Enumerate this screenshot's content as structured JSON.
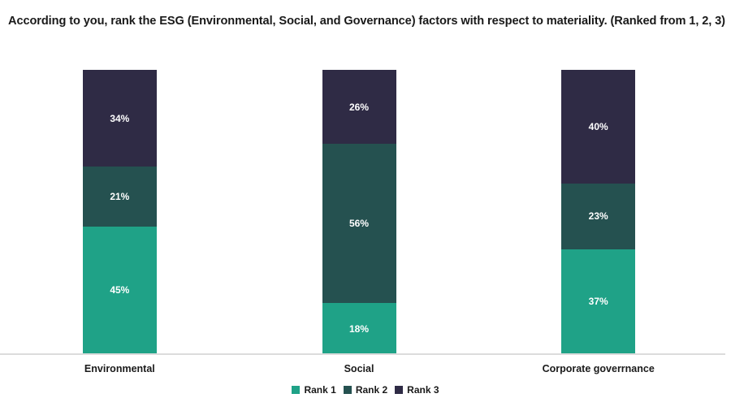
{
  "title": "According to you, rank the ESG (Environmental, Social, and Governance) factors with respect to materiality. (Ranked from 1, 2, 3)",
  "colors": {
    "rank1": "#1FA287",
    "rank2": "#255150",
    "rank3": "#2F2B45",
    "baseline": "#DCDCDC",
    "data_label": "#FFFFFF"
  },
  "chart_data": {
    "type": "bar",
    "stacked": true,
    "categories": [
      "Environmental",
      "Social",
      "Corporate goverrnance"
    ],
    "series": [
      {
        "name": "Rank 1",
        "color": "#1FA287",
        "values": [
          45,
          18,
          37
        ]
      },
      {
        "name": "Rank 2",
        "color": "#255150",
        "values": [
          21,
          56,
          23
        ]
      },
      {
        "name": "Rank 3",
        "color": "#2F2B45",
        "values": [
          34,
          26,
          40
        ]
      }
    ],
    "title": "According to you, rank the ESG (Environmental, Social, and Governance) factors with respect to materiality. (Ranked from 1, 2, 3)",
    "xlabel": "",
    "ylabel": "",
    "ylim": [
      0,
      100
    ],
    "value_format": "percent",
    "data_labels": true,
    "grid": false,
    "y_axis_visible": false,
    "legend_position": "bottom"
  }
}
